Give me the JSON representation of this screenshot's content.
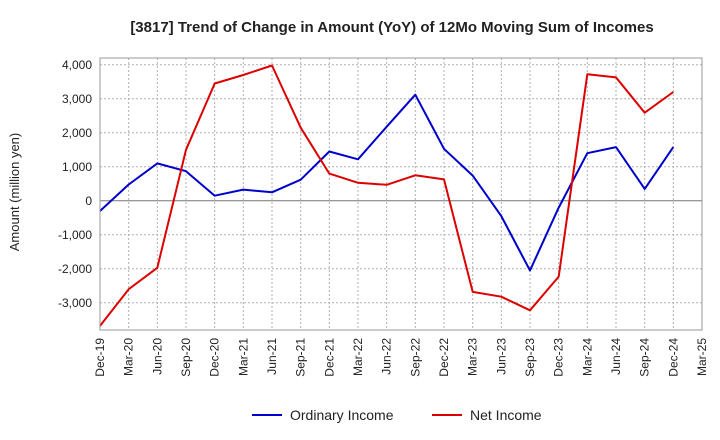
{
  "chart_data": {
    "type": "line",
    "title": "[3817]  Trend of Change in Amount (YoY) of 12Mo Moving Sum of Incomes",
    "xlabel": "",
    "ylabel": "Amount (million yen)",
    "ylim": [
      -3800,
      4200
    ],
    "yticks": [
      4000,
      3000,
      2000,
      1000,
      0,
      -1000,
      -2000,
      -3000
    ],
    "ytick_labels": [
      "4,000",
      "3,000",
      "2,000",
      "1,000",
      "0",
      "-1,000",
      "-2,000",
      "-3,000"
    ],
    "categories": [
      "Dec-19",
      "Mar-20",
      "Jun-20",
      "Sep-20",
      "Dec-20",
      "Mar-21",
      "Jun-21",
      "Sep-21",
      "Dec-21",
      "Mar-22",
      "Jun-22",
      "Sep-22",
      "Dec-22",
      "Mar-23",
      "Jun-23",
      "Sep-23",
      "Dec-23",
      "Mar-24",
      "Jun-24",
      "Sep-24",
      "Dec-24",
      "Mar-25"
    ],
    "grid": true,
    "legend_position": "bottom",
    "series": [
      {
        "name": "Ordinary Income",
        "color": "#0000cc",
        "values": [
          -300,
          480,
          1100,
          870,
          150,
          330,
          250,
          620,
          1450,
          1220,
          2180,
          3120,
          1530,
          740,
          -450,
          -2050,
          -200,
          1400,
          1580,
          350,
          1580,
          null
        ]
      },
      {
        "name": "Net Income",
        "color": "#dd0000",
        "values": [
          -3680,
          -2600,
          -1970,
          1500,
          3450,
          3700,
          3980,
          2150,
          800,
          530,
          470,
          750,
          630,
          -2680,
          -2820,
          -3220,
          -2230,
          3720,
          3630,
          2590,
          3200,
          null
        ]
      }
    ]
  }
}
